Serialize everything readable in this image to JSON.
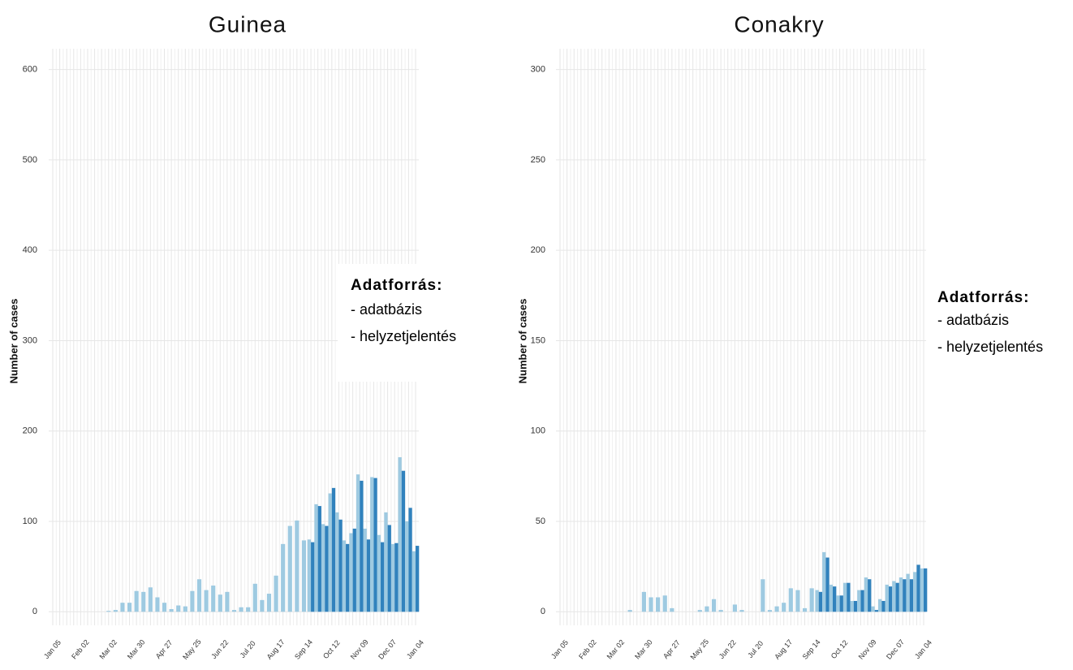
{
  "chart_data": [
    {
      "type": "bar",
      "title": "Guinea",
      "y_label": "Number of cases",
      "legend_title": "Adatforrás:",
      "categories": [
        "Jan 05",
        null,
        null,
        null,
        "Feb 02",
        null,
        null,
        null,
        "Mar 02",
        null,
        null,
        null,
        "Mar 30",
        null,
        null,
        null,
        "Apr 27",
        null,
        null,
        null,
        "May 25",
        null,
        null,
        null,
        "Jun 22",
        null,
        null,
        null,
        "Jul 20",
        null,
        null,
        null,
        "Aug 17",
        null,
        null,
        null,
        "Sep 14",
        null,
        null,
        null,
        "Oct 12",
        null,
        null,
        null,
        "Nov 09",
        null,
        null,
        null,
        "Dec 07",
        null,
        null,
        null,
        "Jan 04"
      ],
      "series": [
        {
          "name": "- adatbázis",
          "color": "#9ecae1",
          "values": [
            null,
            null,
            null,
            null,
            null,
            null,
            null,
            null,
            1,
            2,
            10,
            10,
            23,
            22,
            27,
            16,
            10,
            3,
            7,
            6,
            23,
            36,
            24,
            29,
            19,
            22,
            2,
            5,
            5,
            31,
            13,
            20,
            40,
            75,
            95,
            101,
            79,
            80,
            119,
            97,
            131,
            110,
            79,
            87,
            152,
            92,
            149,
            85,
            110,
            75,
            171,
            100,
            67
          ]
        },
        {
          "name": "- helyzetjelentés",
          "color": "#3182bd",
          "values": [
            null,
            null,
            null,
            null,
            null,
            null,
            null,
            null,
            null,
            null,
            null,
            null,
            null,
            null,
            null,
            null,
            null,
            null,
            null,
            null,
            null,
            null,
            null,
            null,
            null,
            null,
            null,
            null,
            null,
            null,
            null,
            null,
            null,
            null,
            null,
            null,
            null,
            77,
            117,
            95,
            137,
            102,
            75,
            92,
            145,
            80,
            148,
            77,
            96,
            76,
            156,
            115,
            73
          ]
        }
      ],
      "ylim": [
        -15,
        623
      ],
      "yticks": [
        0,
        100,
        200,
        300,
        400,
        500,
        600
      ],
      "grid": true
    },
    {
      "type": "bar",
      "title": "Conakry",
      "y_label": "Number of cases",
      "legend_title": "Adatforrás:",
      "categories": [
        "Jan 05",
        null,
        null,
        null,
        "Feb 02",
        null,
        null,
        null,
        "Mar 02",
        null,
        null,
        null,
        "Mar 30",
        null,
        null,
        null,
        "Apr 27",
        null,
        null,
        null,
        "May 25",
        null,
        null,
        null,
        "Jun 22",
        null,
        null,
        null,
        "Jul 20",
        null,
        null,
        null,
        "Aug 17",
        null,
        null,
        null,
        "Sep 14",
        null,
        null,
        null,
        "Oct 12",
        null,
        null,
        null,
        "Nov 09",
        null,
        null,
        null,
        "Dec 07",
        null,
        null,
        null,
        "Jan 04"
      ],
      "series": [
        {
          "name": "- adatbázis",
          "color": "#9ecae1",
          "values": [
            null,
            null,
            null,
            null,
            null,
            null,
            null,
            null,
            null,
            null,
            1,
            null,
            11,
            8,
            8,
            9,
            2,
            null,
            null,
            null,
            1,
            3,
            7,
            1,
            null,
            4,
            1,
            null,
            null,
            18,
            1,
            3,
            5,
            13,
            12,
            2,
            13,
            12,
            33,
            15,
            9,
            16,
            6,
            12,
            19,
            3,
            7,
            15,
            17,
            19,
            21,
            22,
            24
          ]
        },
        {
          "name": "- helyzetjelentés",
          "color": "#3182bd",
          "values": [
            null,
            null,
            null,
            null,
            null,
            null,
            null,
            null,
            null,
            null,
            null,
            null,
            null,
            null,
            null,
            null,
            null,
            null,
            null,
            null,
            null,
            null,
            null,
            null,
            null,
            null,
            null,
            null,
            null,
            null,
            null,
            null,
            null,
            null,
            null,
            null,
            null,
            11,
            30,
            14,
            9,
            16,
            6,
            12,
            18,
            1,
            6,
            14,
            16,
            18,
            18,
            26,
            24
          ]
        }
      ],
      "ylim": [
        -7.5,
        311.5
      ],
      "yticks": [
        0,
        50,
        100,
        150,
        200,
        250,
        300
      ],
      "grid": true
    }
  ]
}
